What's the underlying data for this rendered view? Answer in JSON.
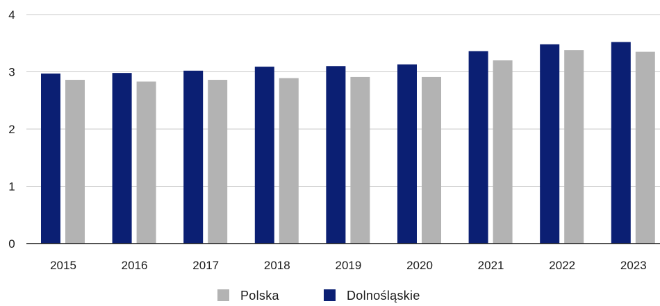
{
  "chart_data": {
    "type": "bar",
    "title": "",
    "xlabel": "",
    "ylabel": "",
    "categories": [
      "2015",
      "2016",
      "2017",
      "2018",
      "2019",
      "2020",
      "2021",
      "2022",
      "2023"
    ],
    "series": [
      {
        "name": "Dolnośląskie",
        "color": "#0b1f73",
        "values": [
          2.97,
          2.98,
          3.02,
          3.09,
          3.1,
          3.13,
          3.36,
          3.48,
          3.52
        ]
      },
      {
        "name": "Polska",
        "color": "#b3b3b3",
        "values": [
          2.86,
          2.83,
          2.86,
          2.89,
          2.91,
          2.91,
          3.2,
          3.38,
          3.35
        ]
      }
    ],
    "ylim": [
      0,
      4
    ],
    "yticks": [
      "0",
      "1",
      "2",
      "3",
      "4"
    ],
    "grid": true,
    "legend_position": "bottom",
    "legend": [
      {
        "label": "Polska",
        "color": "#b3b3b3"
      },
      {
        "label": "Dolnośląskie",
        "color": "#0b1f73"
      }
    ]
  }
}
